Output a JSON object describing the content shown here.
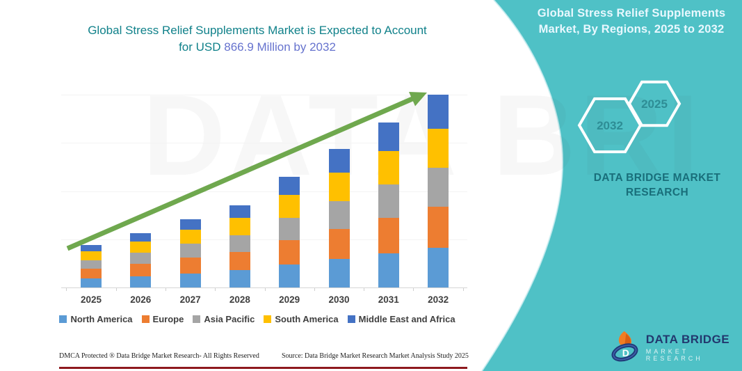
{
  "title": {
    "line1": "Global Stress Relief Supplements Market is Expected to Account",
    "line2_prefix": "for USD ",
    "line2_highlight": "866.9 Million by 2032"
  },
  "watermark_text": "DATA BRI",
  "right_panel": {
    "heading_line1": "Global Stress Relief Supplements",
    "heading_line2": "Market, By Regions, 2025 to 2032",
    "hexagons": [
      {
        "label": "2032"
      },
      {
        "label": "2025"
      }
    ],
    "brand_line1": "DATA BRIDGE MARKET",
    "brand_line2": "RESEARCH",
    "logo_name": "DATA BRIDGE",
    "logo_subtitle": "MARKET RESEARCH"
  },
  "footer": {
    "left": "DMCA Protected ® Data Bridge Market Research-  All Rights Reserved",
    "right": "Source: Data Bridge Market Research  Market Analysis Study 2025"
  },
  "colors": {
    "teal_panel": "#4fc1c6",
    "panel_edge": "#cdeef1",
    "title_teal": "#10818a",
    "title_highlight": "#6673ce",
    "arrow_green": "#6fa84e",
    "axis_gray": "#d6d6d6",
    "label_gray": "#3f3f3f",
    "footer_rule_maroon": "#8e191e"
  },
  "chart_data": {
    "type": "bar",
    "stacked": true,
    "title": "Global Stress Relief Supplements Market is Expected to Account for USD 866.9 Million by 2032",
    "xlabel": "",
    "ylabel": "",
    "unit": "USD Million",
    "ylim": [
      0,
      900
    ],
    "grid": "faint-horizontal",
    "legend_position": "bottom",
    "annotations": {
      "trend_arrow": "rising left-to-right",
      "value_2032_total": 866.9
    },
    "categories": [
      "2025",
      "2026",
      "2027",
      "2028",
      "2029",
      "2030",
      "2031",
      "2032"
    ],
    "series": [
      {
        "name": "North America",
        "color": "#5b9bd5",
        "values": [
          40,
          51,
          64,
          77,
          103,
          128,
          152,
          176.9
        ]
      },
      {
        "name": "Europe",
        "color": "#ed7d31",
        "values": [
          44,
          56,
          70,
          84,
          109,
          135,
          160,
          186
        ]
      },
      {
        "name": "Asia Pacific",
        "color": "#a5a5a5",
        "values": [
          38,
          49,
          62,
          75,
          101,
          126,
          150,
          175
        ]
      },
      {
        "name": "South America",
        "color": "#ffc000",
        "values": [
          40,
          51,
          64,
          77,
          102,
          127,
          151,
          176
        ]
      },
      {
        "name": "Middle East and Africa",
        "color": "#4472c4",
        "values": [
          29,
          37,
          47,
          56,
          83,
          107,
          129,
          153
        ]
      }
    ],
    "totals": [
      191,
      244,
      307,
      369,
      498,
      623,
      742,
      866.9
    ]
  }
}
